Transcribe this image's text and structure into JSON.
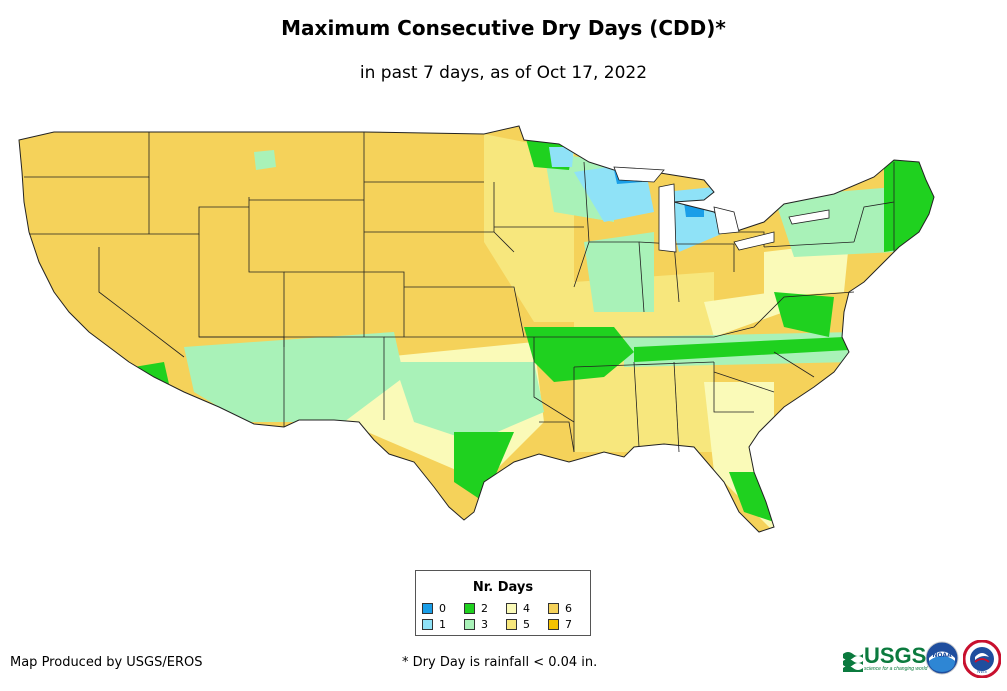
{
  "header": {
    "title": "Maximum Consecutive Dry Days (CDD)*",
    "subtitle": "in past 7 days, as of Oct 17, 2022"
  },
  "legend": {
    "title": "Nr. Days",
    "items": [
      {
        "label": "0",
        "color": "#1a9ee8"
      },
      {
        "label": "1",
        "color": "#8fe2f7"
      },
      {
        "label": "2",
        "color": "#1fd11f"
      },
      {
        "label": "3",
        "color": "#a9f2b8"
      },
      {
        "label": "4",
        "color": "#fafab8"
      },
      {
        "label": "5",
        "color": "#f7e77d"
      },
      {
        "label": "6",
        "color": "#f5d25a"
      },
      {
        "label": "7",
        "color": "#f5c200"
      }
    ]
  },
  "footer": {
    "credit": "Map Produced by USGS/EROS",
    "note": "* Dry Day is rainfall < 0.04 in."
  },
  "logos": {
    "usgs": "USGS",
    "usgs_tagline": "science for a changing world",
    "noaa": "NOAA",
    "nws": "NWS"
  }
}
